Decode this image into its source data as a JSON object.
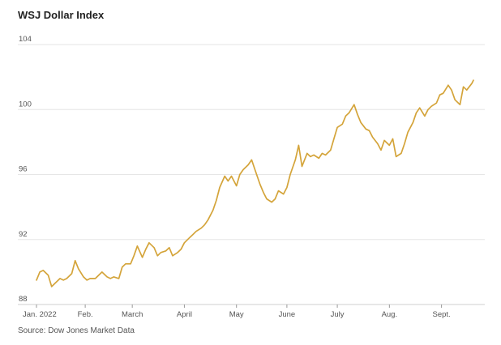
{
  "chart_data": {
    "type": "line",
    "title": "WSJ Dollar Index",
    "source": "Source: Dow Jones Market Data",
    "xlabel": "",
    "ylabel": "",
    "ylim": [
      88,
      104
    ],
    "yticks": [
      {
        "value": 104,
        "label": "104"
      },
      {
        "value": 100,
        "label": "100"
      },
      {
        "value": 96,
        "label": "96"
      },
      {
        "value": 92,
        "label": "92"
      },
      {
        "value": 88,
        "label": "88"
      }
    ],
    "xlim": [
      "2022-01-03",
      "2022-09-20"
    ],
    "xticks": [
      {
        "date": "2022-01-03",
        "label": "Jan. 2022"
      },
      {
        "date": "2022-02-01",
        "label": "Feb."
      },
      {
        "date": "2022-03-01",
        "label": "March"
      },
      {
        "date": "2022-04-01",
        "label": "April"
      },
      {
        "date": "2022-05-02",
        "label": "May"
      },
      {
        "date": "2022-06-01",
        "label": "June"
      },
      {
        "date": "2022-07-01",
        "label": "July"
      },
      {
        "date": "2022-08-01",
        "label": "Aug."
      },
      {
        "date": "2022-09-01",
        "label": "Sept."
      }
    ],
    "grid": true,
    "line_color": "#d4a43a",
    "series": [
      {
        "x": [
          "2022-01-03",
          "2022-01-05",
          "2022-01-07",
          "2022-01-10",
          "2022-01-12",
          "2022-01-14",
          "2022-01-17",
          "2022-01-19",
          "2022-01-21",
          "2022-01-24",
          "2022-01-26",
          "2022-01-28",
          "2022-01-31",
          "2022-02-02",
          "2022-02-04",
          "2022-02-07",
          "2022-02-09",
          "2022-02-11",
          "2022-02-14",
          "2022-02-16",
          "2022-02-18",
          "2022-02-21",
          "2022-02-23",
          "2022-02-25",
          "2022-02-28",
          "2022-03-02",
          "2022-03-04",
          "2022-03-07",
          "2022-03-09",
          "2022-03-11",
          "2022-03-14",
          "2022-03-16",
          "2022-03-18",
          "2022-03-21",
          "2022-03-23",
          "2022-03-25",
          "2022-03-28",
          "2022-03-30",
          "2022-04-01",
          "2022-04-04",
          "2022-04-06",
          "2022-04-08",
          "2022-04-11",
          "2022-04-13",
          "2022-04-15",
          "2022-04-18",
          "2022-04-20",
          "2022-04-22",
          "2022-04-25",
          "2022-04-27",
          "2022-04-29",
          "2022-05-02",
          "2022-05-04",
          "2022-05-06",
          "2022-05-09",
          "2022-05-11",
          "2022-05-13",
          "2022-05-16",
          "2022-05-18",
          "2022-05-20",
          "2022-05-23",
          "2022-05-25",
          "2022-05-27",
          "2022-05-30",
          "2022-06-01",
          "2022-06-03",
          "2022-06-06",
          "2022-06-08",
          "2022-06-10",
          "2022-06-13",
          "2022-06-15",
          "2022-06-17",
          "2022-06-20",
          "2022-06-22",
          "2022-06-24",
          "2022-06-27",
          "2022-06-29",
          "2022-07-01",
          "2022-07-04",
          "2022-07-06",
          "2022-07-08",
          "2022-07-11",
          "2022-07-13",
          "2022-07-15",
          "2022-07-18",
          "2022-07-20",
          "2022-07-22",
          "2022-07-25",
          "2022-07-27",
          "2022-07-29",
          "2022-08-01",
          "2022-08-03",
          "2022-08-05",
          "2022-08-08",
          "2022-08-10",
          "2022-08-12",
          "2022-08-15",
          "2022-08-17",
          "2022-08-19",
          "2022-08-22",
          "2022-08-24",
          "2022-08-26",
          "2022-08-29",
          "2022-08-31",
          "2022-09-02",
          "2022-09-05",
          "2022-09-07",
          "2022-09-09",
          "2022-09-12",
          "2022-09-14",
          "2022-09-16",
          "2022-09-19",
          "2022-09-20"
        ],
        "values": [
          89.5,
          90.0,
          90.1,
          89.8,
          89.1,
          89.3,
          89.6,
          89.5,
          89.6,
          89.9,
          90.7,
          90.2,
          89.7,
          89.5,
          89.6,
          89.6,
          89.8,
          90.0,
          89.7,
          89.6,
          89.7,
          89.6,
          90.3,
          90.5,
          90.5,
          91.0,
          91.6,
          90.9,
          91.4,
          91.8,
          91.5,
          91.0,
          91.2,
          91.3,
          91.5,
          91.0,
          91.2,
          91.4,
          91.8,
          92.1,
          92.3,
          92.5,
          92.7,
          92.9,
          93.2,
          93.8,
          94.4,
          95.2,
          95.9,
          95.6,
          95.9,
          95.3,
          96.0,
          96.3,
          96.6,
          96.9,
          96.3,
          95.4,
          94.9,
          94.5,
          94.3,
          94.5,
          95.0,
          94.8,
          95.2,
          96.0,
          96.9,
          97.8,
          96.5,
          97.3,
          97.1,
          97.2,
          97.0,
          97.3,
          97.2,
          97.5,
          98.2,
          98.9,
          99.1,
          99.6,
          99.8,
          100.3,
          99.7,
          99.2,
          98.8,
          98.7,
          98.3,
          97.9,
          97.5,
          98.1,
          97.8,
          98.2,
          97.1,
          97.3,
          97.9,
          98.6,
          99.2,
          99.8,
          100.1,
          99.6,
          100.0,
          100.2,
          100.4,
          100.9,
          101.0,
          101.5,
          101.2,
          100.6,
          100.3,
          101.4,
          101.2,
          101.6,
          101.8
        ]
      }
    ]
  }
}
